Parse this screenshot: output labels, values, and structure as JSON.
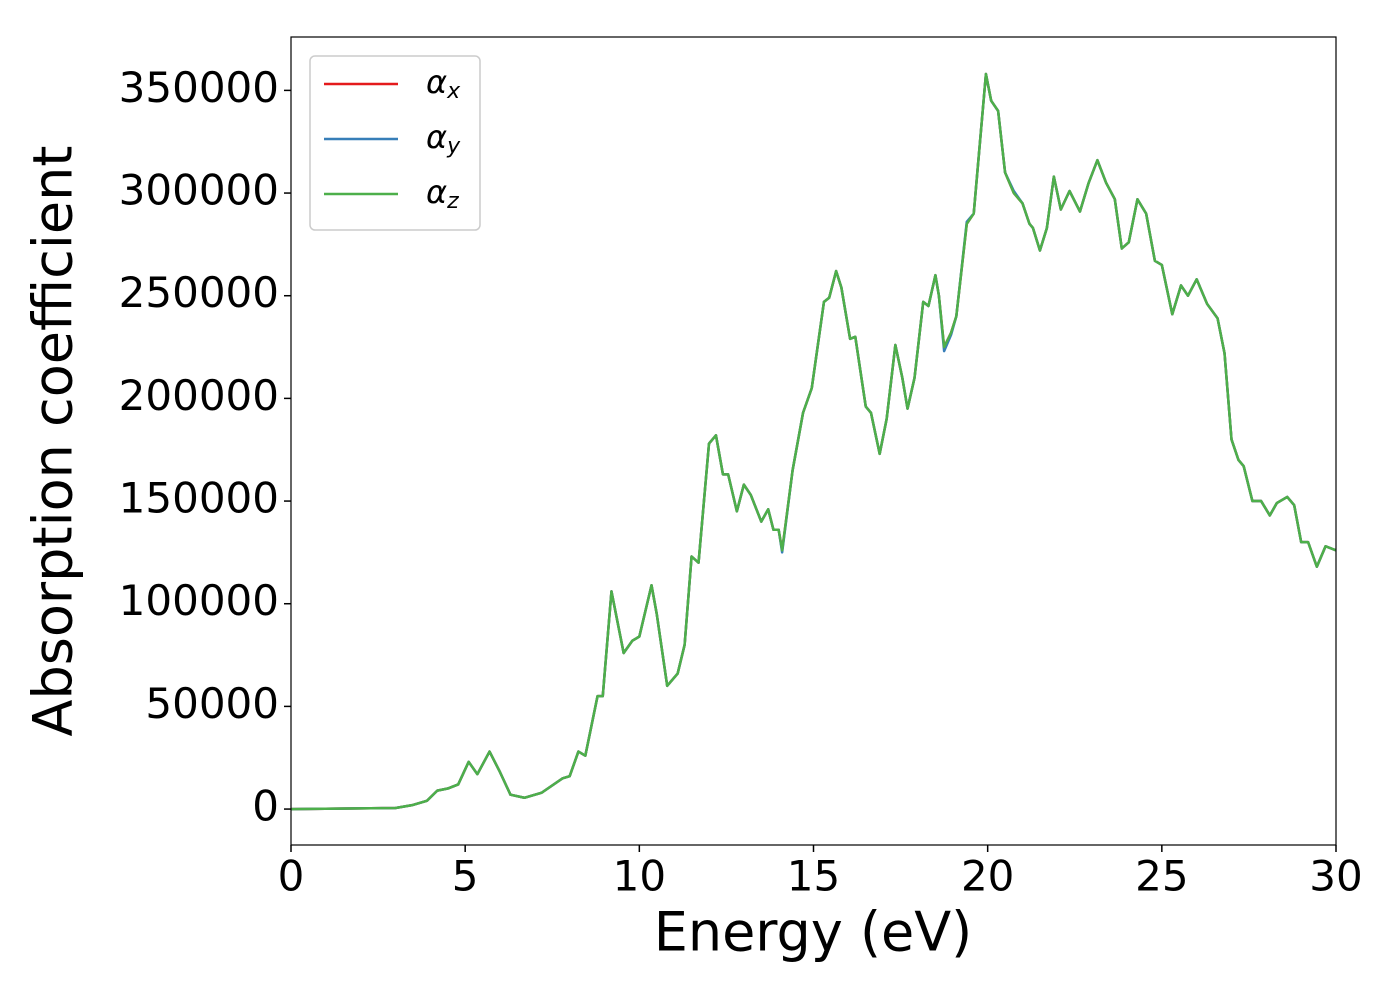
{
  "chart_data": {
    "type": "line",
    "xlabel": "Energy (eV)",
    "ylabel": "Absorption coefficient",
    "x": [
      0,
      3.0,
      3.5,
      3.9,
      4.2,
      4.5,
      4.8,
      5.1,
      5.35,
      5.7,
      6.0,
      6.3,
      6.7,
      7.2,
      7.8,
      8.0,
      8.25,
      8.45,
      8.8,
      8.95,
      9.2,
      9.55,
      9.8,
      10.0,
      10.35,
      10.5,
      10.8,
      11.1,
      11.3,
      11.5,
      11.7,
      12.0,
      12.2,
      12.4,
      12.55,
      12.8,
      13.0,
      13.2,
      13.5,
      13.7,
      13.85,
      14.0,
      14.1,
      14.4,
      14.7,
      14.95,
      15.3,
      15.45,
      15.65,
      15.8,
      16.05,
      16.2,
      16.5,
      16.65,
      16.9,
      17.1,
      17.35,
      17.55,
      17.7,
      17.9,
      18.15,
      18.3,
      18.5,
      18.6,
      18.75,
      18.95,
      19.1,
      19.4,
      19.6,
      19.95,
      20.1,
      20.3,
      20.5,
      20.75,
      21.0,
      21.2,
      21.3,
      21.5,
      21.7,
      21.9,
      22.1,
      22.35,
      22.65,
      22.9,
      23.15,
      23.4,
      23.65,
      23.85,
      24.05,
      24.3,
      24.55,
      24.8,
      25.0,
      25.3,
      25.55,
      25.75,
      26.0,
      26.3,
      26.6,
      26.8,
      27.0,
      27.2,
      27.35,
      27.6,
      27.85,
      28.1,
      28.3,
      28.6,
      28.8,
      29.0,
      29.2,
      29.45,
      29.7,
      30.0
    ],
    "series": [
      {
        "name": "αx",
        "color": "#e41a1c",
        "values": [
          0,
          500,
          2000,
          4000,
          9000,
          10000,
          12000,
          23000,
          17000,
          28000,
          18000,
          7000,
          5500,
          8000,
          15000,
          16000,
          28000,
          26000,
          55000,
          55000,
          106000,
          76000,
          82000,
          84000,
          109000,
          95000,
          60000,
          66000,
          80000,
          123000,
          120000,
          178000,
          182000,
          163000,
          163000,
          145000,
          158000,
          153000,
          140000,
          146000,
          136000,
          136000,
          126000,
          165000,
          193000,
          205000,
          247000,
          249000,
          262000,
          254000,
          229000,
          230000,
          196000,
          193000,
          173000,
          190000,
          226000,
          210000,
          195000,
          210000,
          247000,
          245000,
          260000,
          250000,
          225000,
          232000,
          240000,
          285000,
          290000,
          358000,
          345000,
          340000,
          310000,
          300000,
          295000,
          285000,
          283000,
          272000,
          283000,
          308000,
          292000,
          301000,
          291000,
          305000,
          316000,
          305000,
          297000,
          273000,
          276000,
          297000,
          290000,
          267000,
          265000,
          241000,
          255000,
          250000,
          258000,
          246000,
          239000,
          222000,
          180000,
          170000,
          167000,
          150000,
          150000,
          143000,
          149000,
          152000,
          148000,
          130000,
          130000,
          118000,
          128000,
          126000
        ]
      },
      {
        "name": "αy",
        "color": "#377eb8",
        "values": [
          0,
          500,
          2000,
          4000,
          9000,
          10000,
          12000,
          23000,
          17000,
          28000,
          18000,
          7000,
          5500,
          8000,
          15000,
          16000,
          28000,
          26000,
          55000,
          55000,
          106000,
          76000,
          82000,
          84000,
          109000,
          95000,
          60000,
          66000,
          80000,
          123000,
          120000,
          178000,
          182000,
          163000,
          163000,
          145000,
          158000,
          153000,
          140000,
          146000,
          136000,
          136000,
          125000,
          165000,
          193000,
          205000,
          247000,
          249000,
          262000,
          254000,
          229000,
          230000,
          196000,
          193000,
          173000,
          190000,
          226000,
          210000,
          195000,
          210000,
          247000,
          245000,
          260000,
          250000,
          223000,
          231000,
          240000,
          286000,
          290000,
          358000,
          345000,
          340000,
          310000,
          301000,
          295000,
          285000,
          283000,
          272000,
          283000,
          308000,
          292000,
          301000,
          291000,
          305000,
          316000,
          305000,
          297000,
          273000,
          276000,
          297000,
          290000,
          267000,
          265000,
          241000,
          255000,
          250000,
          258000,
          246000,
          239000,
          222000,
          180000,
          170000,
          167000,
          150000,
          150000,
          143000,
          149000,
          152000,
          148000,
          130000,
          130000,
          118000,
          128000,
          126000
        ]
      },
      {
        "name": "αz",
        "color": "#4daf4a",
        "values": [
          0,
          500,
          2000,
          4000,
          9000,
          10000,
          12000,
          23000,
          17000,
          28000,
          18000,
          7000,
          5500,
          8000,
          15000,
          16000,
          28000,
          26000,
          55000,
          55000,
          106000,
          76000,
          82000,
          84000,
          109000,
          95000,
          60000,
          66000,
          80000,
          123000,
          120000,
          178000,
          182000,
          163000,
          163000,
          145000,
          158000,
          153000,
          140000,
          146000,
          136000,
          136000,
          126000,
          165000,
          193000,
          205000,
          247000,
          249000,
          262000,
          254000,
          229000,
          230000,
          196000,
          193000,
          173000,
          190000,
          226000,
          210000,
          195000,
          210000,
          247000,
          245000,
          260000,
          250000,
          225000,
          232000,
          240000,
          285000,
          290000,
          358000,
          345000,
          340000,
          310000,
          300000,
          295000,
          285000,
          283000,
          272000,
          283000,
          308000,
          292000,
          301000,
          291000,
          305000,
          316000,
          305000,
          297000,
          273000,
          276000,
          297000,
          290000,
          267000,
          265000,
          241000,
          255000,
          250000,
          258000,
          246000,
          239000,
          222000,
          180000,
          170000,
          167000,
          150000,
          150000,
          143000,
          149000,
          152000,
          148000,
          130000,
          130000,
          118000,
          128000,
          126000
        ]
      }
    ],
    "xlim": [
      0,
      30
    ],
    "xticks": [
      0,
      5,
      10,
      15,
      20,
      25,
      30
    ],
    "ylim": [
      -17500,
      376000
    ],
    "yticks": [
      0,
      50000,
      100000,
      150000,
      200000,
      250000,
      300000,
      350000
    ],
    "legend": "upper left",
    "grid": false
  }
}
